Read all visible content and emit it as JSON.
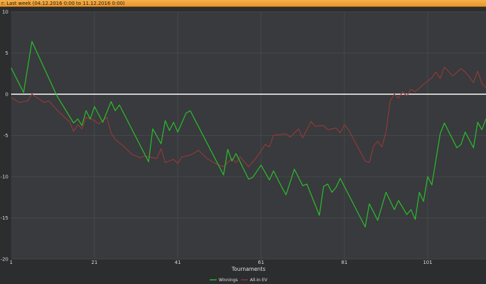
{
  "header": {
    "title": "r: Last week (04.12.2016 0:00 to 11.12.2016 0:00)"
  },
  "chart_data": {
    "type": "line",
    "xlabel": "Tournaments",
    "ylabel": "",
    "xlim": [
      1,
      115
    ],
    "ylim": [
      -20,
      10
    ],
    "x_ticks": [
      "1",
      "21",
      "41",
      "61",
      "81",
      "101"
    ],
    "y_ticks": [
      "10",
      "5",
      "0",
      "-5",
      "-10",
      "-15",
      "-20"
    ],
    "grid": true,
    "legend_position": "bottom-center",
    "series": [
      {
        "name": "Winnings",
        "color": "#2bb82b",
        "points": [
          [
            1,
            3.2
          ],
          [
            4,
            0.2
          ],
          [
            6,
            6.4
          ],
          [
            12,
            -0.2
          ],
          [
            16,
            -3.5
          ],
          [
            17,
            -3
          ],
          [
            18,
            -3.8
          ],
          [
            19,
            -2
          ],
          [
            20,
            -3
          ],
          [
            21,
            -1.5
          ],
          [
            23,
            -3.4
          ],
          [
            25,
            -0.9
          ],
          [
            26,
            -2
          ],
          [
            27,
            -1.3
          ],
          [
            34,
            -8.2
          ],
          [
            35,
            -4.2
          ],
          [
            37,
            -6
          ],
          [
            38,
            -3.2
          ],
          [
            39,
            -4.4
          ],
          [
            40,
            -3.4
          ],
          [
            41,
            -4.6
          ],
          [
            43,
            -2.3
          ],
          [
            44,
            -2
          ],
          [
            52,
            -9.8
          ],
          [
            53,
            -6.7
          ],
          [
            54,
            -8.1
          ],
          [
            55,
            -7.2
          ],
          [
            58,
            -10.3
          ],
          [
            59,
            -10.1
          ],
          [
            61,
            -8.6
          ],
          [
            63,
            -10.4
          ],
          [
            64,
            -9.3
          ],
          [
            66,
            -11.3
          ],
          [
            67,
            -12.2
          ],
          [
            69,
            -9.1
          ],
          [
            71,
            -11.1
          ],
          [
            72,
            -10.9
          ],
          [
            75,
            -14.7
          ],
          [
            76,
            -11.2
          ],
          [
            77,
            -10.9
          ],
          [
            78,
            -11.9
          ],
          [
            79,
            -11.3
          ],
          [
            80,
            -10.2
          ],
          [
            86,
            -16.1
          ],
          [
            87,
            -13.3
          ],
          [
            89,
            -15.3
          ],
          [
            91,
            -11.9
          ],
          [
            93,
            -14
          ],
          [
            94,
            -12.9
          ],
          [
            96,
            -14.6
          ],
          [
            97,
            -14
          ],
          [
            98,
            -15.2
          ],
          [
            99,
            -11.9
          ],
          [
            100,
            -13
          ],
          [
            101,
            -10
          ],
          [
            102,
            -11
          ],
          [
            104,
            -4.8
          ],
          [
            105,
            -3.5
          ],
          [
            108,
            -6.5
          ],
          [
            109,
            -6.1
          ],
          [
            110,
            -4.6
          ],
          [
            112,
            -6.5
          ],
          [
            113,
            -3.4
          ],
          [
            114,
            -4.3
          ],
          [
            115,
            -3
          ]
        ]
      },
      {
        "name": "All-In EV",
        "color": "#8a3a3a",
        "points": [
          [
            1,
            -0.4
          ],
          [
            3,
            -1
          ],
          [
            5,
            -0.8
          ],
          [
            6,
            0
          ],
          [
            9,
            -1
          ],
          [
            10,
            -0.8
          ],
          [
            12,
            -1.9
          ],
          [
            14,
            -2.9
          ],
          [
            15,
            -3.3
          ],
          [
            16,
            -4.5
          ],
          [
            17,
            -3.7
          ],
          [
            18,
            -4.2
          ],
          [
            19,
            -2.8
          ],
          [
            21,
            -3.2
          ],
          [
            22,
            -3.6
          ],
          [
            24,
            -2.8
          ],
          [
            25,
            -4.7
          ],
          [
            26,
            -5.5
          ],
          [
            28,
            -6.3
          ],
          [
            30,
            -7.3
          ],
          [
            32,
            -7.7
          ],
          [
            33,
            -7.5
          ],
          [
            36,
            -7.8
          ],
          [
            37,
            -6.6
          ],
          [
            38,
            -8.3
          ],
          [
            40,
            -7.9
          ],
          [
            41,
            -8.4
          ],
          [
            42,
            -7.6
          ],
          [
            44,
            -7.4
          ],
          [
            46,
            -6.8
          ],
          [
            48,
            -7.8
          ],
          [
            50,
            -8.4
          ],
          [
            52,
            -8.8
          ],
          [
            54,
            -7.8
          ],
          [
            55,
            -8.3
          ],
          [
            56,
            -7.6
          ],
          [
            58,
            -8.8
          ],
          [
            60,
            -7.6
          ],
          [
            62,
            -6.1
          ],
          [
            63,
            -6.4
          ],
          [
            64,
            -5
          ],
          [
            67,
            -4.8
          ],
          [
            68,
            -5.2
          ],
          [
            70,
            -4.2
          ],
          [
            71,
            -5.3
          ],
          [
            73,
            -3.3
          ],
          [
            74,
            -3.9
          ],
          [
            76,
            -3.8
          ],
          [
            77,
            -4.3
          ],
          [
            79,
            -4.1
          ],
          [
            80,
            -4.7
          ],
          [
            81,
            -3.7
          ],
          [
            82,
            -4.3
          ],
          [
            84,
            -6.2
          ],
          [
            86,
            -8.1
          ],
          [
            87,
            -8.3
          ],
          [
            88,
            -6.3
          ],
          [
            89,
            -5.7
          ],
          [
            90,
            -6.4
          ],
          [
            91,
            -4.6
          ],
          [
            92,
            -0.8
          ],
          [
            93,
            0
          ],
          [
            94,
            -0.5
          ],
          [
            95,
            0.3
          ],
          [
            96,
            -0.2
          ],
          [
            97,
            0.6
          ],
          [
            98,
            0.3
          ],
          [
            100,
            1.2
          ],
          [
            102,
            2
          ],
          [
            103,
            2.7
          ],
          [
            104,
            1.9
          ],
          [
            105,
            3.3
          ],
          [
            107,
            2.2
          ],
          [
            109,
            3.1
          ],
          [
            110,
            2.7
          ],
          [
            111,
            2.1
          ],
          [
            112,
            1.4
          ],
          [
            113,
            2.8
          ],
          [
            114,
            1.3
          ],
          [
            115,
            0.8
          ]
        ]
      }
    ]
  }
}
